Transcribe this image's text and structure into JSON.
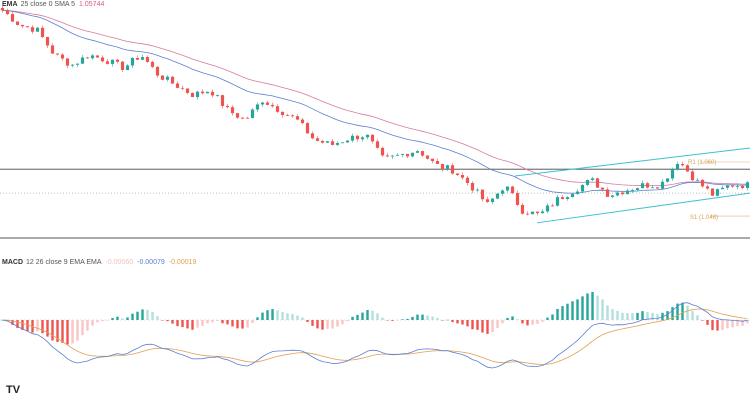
{
  "main_legend": {
    "name": "EMA",
    "params": "25 close 0 SMA 5",
    "value": "1.05744",
    "value_color": "#d45a8a"
  },
  "macd_legend": {
    "name": "MACD",
    "params": "12 26 close 9 EMA EMA",
    "hist_value": "-0.00060",
    "macd_value": "-0.00079",
    "signal_value": "-0.00019",
    "macd_color": "#5b7fd1",
    "signal_color": "#e0a050"
  },
  "pivots": {
    "r1": "R1 (1.060)",
    "s1": "S1 (1.048)"
  },
  "logo": "TV",
  "colors": {
    "up": "#26a69a",
    "down": "#ef5350",
    "ema": "#5b7fd1",
    "sma": "#d77aa0",
    "channel": "#3cc0d0"
  },
  "chart_data": {
    "type": "candlestick",
    "title": "",
    "close_path": [
      1.0937,
      1.0904,
      1.0893,
      1.0838,
      1.0815,
      1.0838,
      1.0826,
      1.0809,
      1.0838,
      1.0793,
      1.0771,
      1.0749,
      1.076,
      1.0715,
      1.0693,
      1.0738,
      1.0715,
      1.0693,
      1.0649,
      1.0638,
      1.0653,
      1.066,
      1.0604,
      1.0616,
      1.0627,
      1.0593,
      1.0582,
      1.0549,
      1.0505,
      1.0549,
      1.0493,
      1.0482,
      1.0516,
      1.0538,
      1.056,
      1.0527,
      1.0538,
      1.0549,
      1.0549,
      1.0604,
      1.056,
      1.0527,
      1.0549,
      1.0549
    ],
    "levels": {
      "horizontal": 1.0584,
      "dotted": 1.0531,
      "r1": 1.06,
      "s1": 1.048
    },
    "channel": {
      "upper": [
        1.0569,
        1.0631
      ],
      "lower": [
        1.0465,
        1.0531
      ]
    },
    "indicators": [
      "EMA 25",
      "SMA 5",
      "MACD 12 26 9"
    ]
  }
}
